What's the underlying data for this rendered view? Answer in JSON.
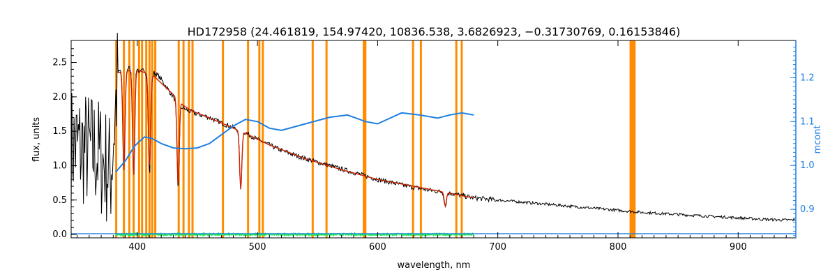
{
  "chart_data": {
    "type": "line",
    "title": "HD172958    (24.461819, 154.97420, 10836.538, 3.6826923, −0.31730769, 0.16153846)",
    "xlabel": "wavelength, nm",
    "ylabel": "flux, units",
    "y2label": "mcont",
    "xlim": [
      345,
      948
    ],
    "ylim": [
      -0.05,
      2.82
    ],
    "y2lim": [
      0.835,
      1.285
    ],
    "xticks": [
      400,
      500,
      600,
      700,
      800,
      900
    ],
    "yticks": [
      0.0,
      0.5,
      1.0,
      1.5,
      2.0,
      2.5
    ],
    "y2ticks": [
      0.9,
      1.0,
      1.1,
      1.2
    ],
    "xtick_labels": [
      "400",
      "500",
      "600",
      "700",
      "800",
      "900"
    ],
    "ytick_labels": [
      "0.0",
      "0.5",
      "1.0",
      "1.5",
      "2.0",
      "2.5"
    ],
    "y2tick_labels": [
      "0.9",
      "1.0",
      "1.1",
      "1.2"
    ],
    "colors": {
      "observed": "#000000",
      "model": "#cc2200",
      "mask": "#ff8c00",
      "mcont": "#1f7fe0",
      "residual": "#22ee55"
    },
    "mask_lines": [
      382.5,
      388.9,
      393.4,
      397.0,
      401.5,
      404.0,
      407.5,
      410.2,
      412.5,
      415.0,
      434.5,
      438.5,
      443.0,
      446.0,
      471.3,
      492.2,
      501.6,
      504.5,
      546.0,
      557.5,
      588.5,
      589.8,
      629.5,
      636.0,
      665.5,
      670.0,
      810.5,
      812.2,
      813.8
    ],
    "series": [
      {
        "key": "observed",
        "x": [
          345,
          355,
          365,
          370,
          374,
          378,
          381,
          384,
          387,
          390,
          393,
          396,
          399,
          402,
          406,
          410,
          414,
          418,
          422,
          426,
          430,
          434,
          437,
          440,
          445,
          450,
          460,
          470,
          480,
          490,
          500,
          510,
          520,
          540,
          560,
          580,
          600,
          620,
          640,
          660,
          680,
          700,
          720,
          740,
          760,
          780,
          800,
          820,
          840,
          860,
          880,
          900,
          920,
          935,
          948
        ],
        "y": [
          1.3,
          1.25,
          1.2,
          1.1,
          1.0,
          0.9,
          1.6,
          2.35,
          2.4,
          2.4,
          2.42,
          2.4,
          2.45,
          2.35,
          2.4,
          2.2,
          2.35,
          2.3,
          2.2,
          2.1,
          2.0,
          1.9,
          1.85,
          1.82,
          1.78,
          1.75,
          1.7,
          1.62,
          1.55,
          1.48,
          1.38,
          1.3,
          1.22,
          1.1,
          1.0,
          0.9,
          0.8,
          0.72,
          0.65,
          0.6,
          0.53,
          0.5,
          0.47,
          0.44,
          0.41,
          0.38,
          0.35,
          0.32,
          0.3,
          0.28,
          0.26,
          0.24,
          0.22,
          0.21,
          0.21
        ]
      },
      {
        "key": "model",
        "x": [
          384,
          390,
          396,
          402,
          408,
          414,
          420,
          426,
          432,
          438,
          445,
          455,
          470,
          490,
          510,
          540,
          570,
          600,
          630,
          660,
          680
        ],
        "y": [
          2.35,
          2.38,
          2.38,
          2.38,
          2.34,
          2.3,
          2.2,
          2.1,
          2.0,
          1.88,
          1.8,
          1.73,
          1.62,
          1.47,
          1.3,
          1.1,
          0.94,
          0.8,
          0.7,
          0.6,
          0.53
        ]
      },
      {
        "key": "mcont",
        "axis": "right",
        "x": [
          382,
          390,
          398,
          406,
          412,
          420,
          430,
          440,
          450,
          460,
          470,
          480,
          490,
          500,
          510,
          520,
          540,
          560,
          575,
          590,
          600,
          620,
          635,
          650,
          660,
          670,
          680
        ],
        "y": [
          0.985,
          1.01,
          1.045,
          1.065,
          1.062,
          1.05,
          1.04,
          1.038,
          1.04,
          1.05,
          1.07,
          1.09,
          1.105,
          1.1,
          1.085,
          1.08,
          1.095,
          1.11,
          1.115,
          1.1,
          1.095,
          1.12,
          1.115,
          1.108,
          1.115,
          1.12,
          1.115
        ]
      },
      {
        "key": "residual",
        "x": [
          382,
          680
        ],
        "y": [
          0.0,
          0.0
        ]
      },
      {
        "key": "baseline",
        "x": [
          345,
          948
        ],
        "y": [
          0.01,
          0.01
        ]
      }
    ],
    "absorption_lines": [
      {
        "x": 388.9,
        "depth": 1.45
      },
      {
        "x": 397.0,
        "depth": 1.55
      },
      {
        "x": 410.2,
        "depth": 1.35
      },
      {
        "x": 434.0,
        "depth": 1.25
      },
      {
        "x": 486.1,
        "depth": 0.85
      },
      {
        "x": 656.3,
        "depth": 0.2
      }
    ]
  }
}
